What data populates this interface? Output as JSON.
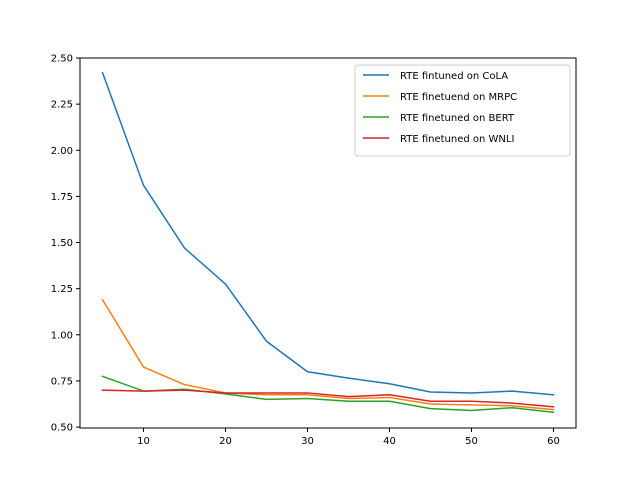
{
  "chart_data": {
    "type": "line",
    "title": "",
    "xlabel": "",
    "ylabel": "",
    "x": [
      5,
      10,
      15,
      20,
      25,
      30,
      35,
      40,
      45,
      50,
      55,
      60
    ],
    "xlim": [
      2.25,
      62.75
    ],
    "ylim": [
      0.495,
      2.5
    ],
    "xticks": [
      10,
      20,
      30,
      40,
      50,
      60
    ],
    "yticks": [
      0.5,
      0.75,
      1.0,
      1.25,
      1.5,
      1.75,
      2.0,
      2.25,
      2.5
    ],
    "xtick_labels": [
      "10",
      "20",
      "30",
      "40",
      "50",
      "60"
    ],
    "ytick_labels": [
      "0.50",
      "0.75",
      "1.00",
      "1.25",
      "1.50",
      "1.75",
      "2.00",
      "2.25",
      "2.50"
    ],
    "grid": false,
    "legend_position": "top-right",
    "series": [
      {
        "name": "RTE fintuned on CoLA",
        "color": "#1f77b4",
        "values": [
          2.42,
          1.81,
          1.47,
          1.275,
          0.965,
          0.8,
          0.765,
          0.735,
          0.69,
          0.685,
          0.695,
          0.675
        ]
      },
      {
        "name": "RTE finetuend on MRPC",
        "color": "#ff7f0e",
        "values": [
          1.19,
          0.825,
          0.73,
          0.685,
          0.675,
          0.675,
          0.655,
          0.66,
          0.625,
          0.62,
          0.615,
          0.595
        ]
      },
      {
        "name": "RTE finetuned on BERT",
        "color": "#2ca02c",
        "values": [
          0.775,
          0.695,
          0.705,
          0.68,
          0.65,
          0.655,
          0.64,
          0.64,
          0.6,
          0.59,
          0.605,
          0.58
        ]
      },
      {
        "name": "RTE finetuned on WNLI",
        "color": "#d62728",
        "values": [
          0.7,
          0.695,
          0.7,
          0.685,
          0.685,
          0.685,
          0.665,
          0.675,
          0.64,
          0.64,
          0.63,
          0.61
        ]
      }
    ]
  }
}
